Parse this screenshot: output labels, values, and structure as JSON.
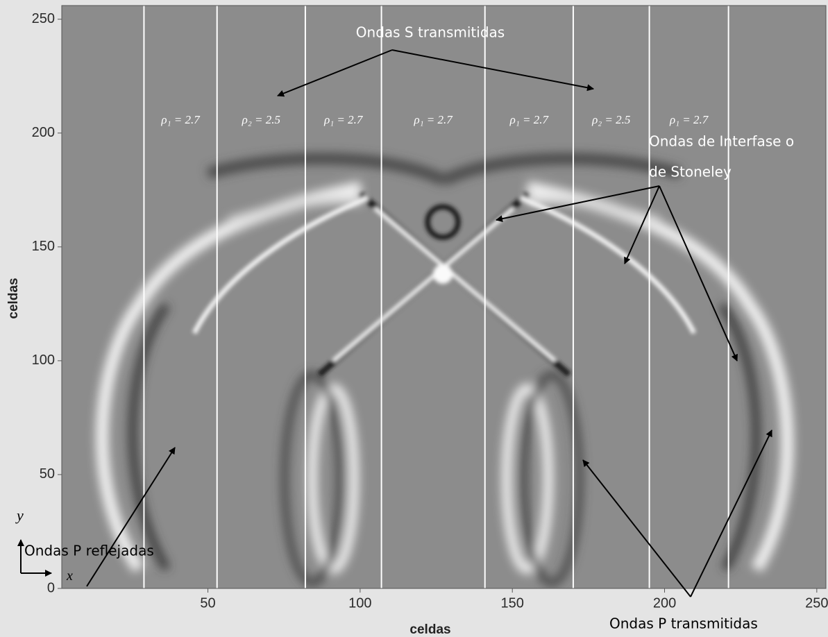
{
  "chart_data": {
    "type": "image",
    "x_label": "celdas",
    "y_label": "celdas",
    "xlim": [
      2,
      253
    ],
    "ylim": [
      0,
      256
    ],
    "xticks": [
      50,
      100,
      150,
      200,
      250
    ],
    "yticks": [
      0,
      50,
      100,
      150,
      200,
      250
    ],
    "interfaces": [
      29,
      53,
      82,
      107,
      141,
      170,
      195,
      221
    ],
    "layer_labels": [
      "ρ₁ = 2.7",
      "ρ₂ = 2.5",
      "ρ₁ = 2.7",
      "ρ₁ = 2.7",
      "ρ₁ = 2.7",
      "ρ₂ = 2.5",
      "ρ₁ = 2.7"
    ],
    "annotations": [
      "Ondas S transmitidas",
      "Ondas de Interfase o",
      "de Stoneley",
      "Ondas P reflejadas",
      "Ondas P transmitidas"
    ],
    "axis_indicator": [
      "y",
      "x"
    ]
  }
}
